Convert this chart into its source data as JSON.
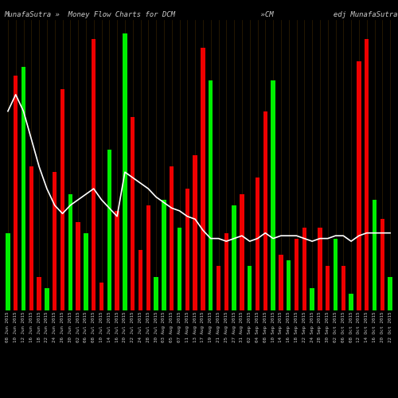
{
  "title": "MunafaSutra »  Money Flow Charts for DCM                    »CM              edj MunafaSutra.com",
  "background_color": "#000000",
  "grid_color": "#5a3a00",
  "white_line_color": "#ffffff",
  "green_color": "#00ee00",
  "red_color": "#ee0000",
  "n_bars": 50,
  "bar_colors": [
    "green",
    "red",
    "green",
    "red",
    "red",
    "green",
    "red",
    "red",
    "green",
    "red",
    "green",
    "red",
    "red",
    "green",
    "red",
    "green",
    "red",
    "red",
    "red",
    "green",
    "green",
    "red",
    "green",
    "red",
    "red",
    "red",
    "green",
    "red",
    "red",
    "green",
    "red",
    "green",
    "red",
    "red",
    "green",
    "red",
    "green",
    "red",
    "red",
    "green",
    "red",
    "red",
    "green",
    "red",
    "green",
    "red",
    "red",
    "green",
    "red",
    "green"
  ],
  "bar_heights": [
    0.28,
    0.85,
    0.88,
    0.52,
    0.12,
    0.08,
    0.5,
    0.8,
    0.42,
    0.32,
    0.28,
    0.98,
    0.1,
    0.58,
    0.36,
    1.0,
    0.7,
    0.22,
    0.38,
    0.12,
    0.4,
    0.52,
    0.3,
    0.44,
    0.56,
    0.95,
    0.83,
    0.16,
    0.28,
    0.38,
    0.42,
    0.16,
    0.48,
    0.72,
    0.83,
    0.2,
    0.18,
    0.26,
    0.3,
    0.08,
    0.3,
    0.16,
    0.26,
    0.16,
    0.06,
    0.9,
    0.98,
    0.4,
    0.33,
    0.12
  ],
  "line_values": [
    0.72,
    0.78,
    0.72,
    0.62,
    0.52,
    0.44,
    0.38,
    0.35,
    0.38,
    0.4,
    0.42,
    0.44,
    0.4,
    0.37,
    0.34,
    0.5,
    0.48,
    0.46,
    0.44,
    0.41,
    0.39,
    0.37,
    0.36,
    0.34,
    0.33,
    0.29,
    0.26,
    0.26,
    0.25,
    0.26,
    0.27,
    0.25,
    0.26,
    0.28,
    0.26,
    0.27,
    0.27,
    0.27,
    0.26,
    0.25,
    0.26,
    0.26,
    0.27,
    0.27,
    0.25,
    0.27,
    0.28,
    0.28,
    0.28,
    0.28
  ],
  "xlabel_fontsize": 4.2,
  "title_fontsize": 6.5,
  "ylim": [
    0,
    1.05
  ],
  "figsize": [
    5.0,
    5.0
  ],
  "dpi": 100,
  "xlabels": [
    "08 Jun 2015",
    "10 Jun 2015",
    "12 Jun 2015",
    "16 Jun 2015",
    "18 Jun 2015",
    "22 Jun 2015",
    "24 Jun 2015",
    "26 Jun 2015",
    "30 Jun 2015",
    "02 Jul 2015",
    "06 Jul 2015",
    "08 Jul 2015",
    "10 Jul 2015",
    "14 Jul 2015",
    "16 Jul 2015",
    "20 Jul 2015",
    "22 Jul 2015",
    "24 Jul 2015",
    "28 Jul 2015",
    "30 Jul 2015",
    "03 Aug 2015",
    "05 Aug 2015",
    "07 Aug 2015",
    "11 Aug 2015",
    "13 Aug 2015",
    "17 Aug 2015",
    "19 Aug 2015",
    "21 Aug 2015",
    "25 Aug 2015",
    "27 Aug 2015",
    "31 Aug 2015",
    "02 Sep 2015",
    "04 Sep 2015",
    "08 Sep 2015",
    "10 Sep 2015",
    "14 Sep 2015",
    "16 Sep 2015",
    "18 Sep 2015",
    "22 Sep 2015",
    "24 Sep 2015",
    "28 Sep 2015",
    "30 Sep 2015",
    "02 Oct 2015",
    "06 Oct 2015",
    "08 Oct 2015",
    "12 Oct 2015",
    "14 Oct 2015",
    "16 Oct 2015",
    "20 Oct 2015",
    "22 Oct 2015"
  ]
}
